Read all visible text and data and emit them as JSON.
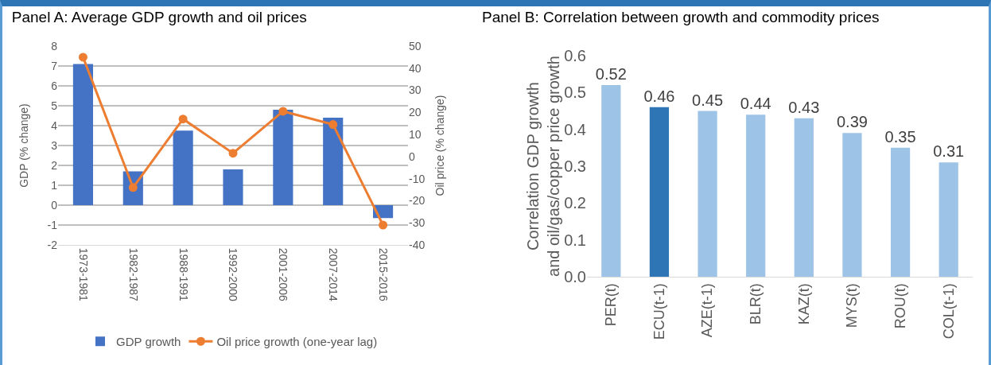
{
  "chart_data": [
    {
      "type": "bar",
      "title": "Panel A: Average GDP growth and oil prices",
      "ylabel": "GDP (% change)",
      "y2label": "Oil price (% change)",
      "categories": [
        "1973-1981",
        "1982-1987",
        "1988-1991",
        "1992-2000",
        "2001-2006",
        "2007-2014",
        "2015-2016"
      ],
      "series": [
        {
          "name": "GDP growth",
          "type": "bar",
          "color": "#4472c4",
          "values": [
            7.1,
            1.7,
            3.75,
            1.8,
            4.8,
            4.4,
            -0.65
          ]
        },
        {
          "name": "Oil price growth (one-year lag)",
          "type": "line",
          "axis": "y2",
          "color": "#ed7d31",
          "marker": "circle",
          "values": [
            45,
            -14,
            17,
            1.5,
            20.5,
            14.5,
            -31
          ]
        }
      ],
      "ylim": [
        -2,
        8
      ],
      "yticks": [
        -2,
        -1,
        0,
        1,
        2,
        3,
        4,
        5,
        6,
        7,
        8
      ],
      "y2lim": [
        -40,
        50
      ],
      "y2ticks": [
        -40,
        -30,
        -20,
        -10,
        0,
        10,
        20,
        30,
        40,
        50
      ],
      "grid": "y",
      "legend": "bottom"
    },
    {
      "type": "bar",
      "title": "Panel B: Correlation between growth and commodity prices",
      "ylabel": "Correlation GDP growth and oil/gas/copper price growth",
      "categories": [
        "PER(t)",
        "ECU(t-1)",
        "AZE(t-1)",
        "BLR(t)",
        "KAZ(t)",
        "MYS(t)",
        "ROU(t)",
        "COL(t-1)"
      ],
      "values": [
        0.52,
        0.46,
        0.45,
        0.44,
        0.43,
        0.39,
        0.35,
        0.31
      ],
      "colors": [
        "#9dc3e6",
        "#2e75b6",
        "#9dc3e6",
        "#9dc3e6",
        "#9dc3e6",
        "#9dc3e6",
        "#9dc3e6",
        "#9dc3e6"
      ],
      "ylim": [
        0,
        0.6
      ],
      "yticks": [
        {
          "value": 0,
          "label": "0.0"
        },
        0.1,
        0.2,
        0.3,
        0.4,
        0.5,
        0.6
      ],
      "data_labels": true,
      "grid": false,
      "legend": false
    }
  ]
}
